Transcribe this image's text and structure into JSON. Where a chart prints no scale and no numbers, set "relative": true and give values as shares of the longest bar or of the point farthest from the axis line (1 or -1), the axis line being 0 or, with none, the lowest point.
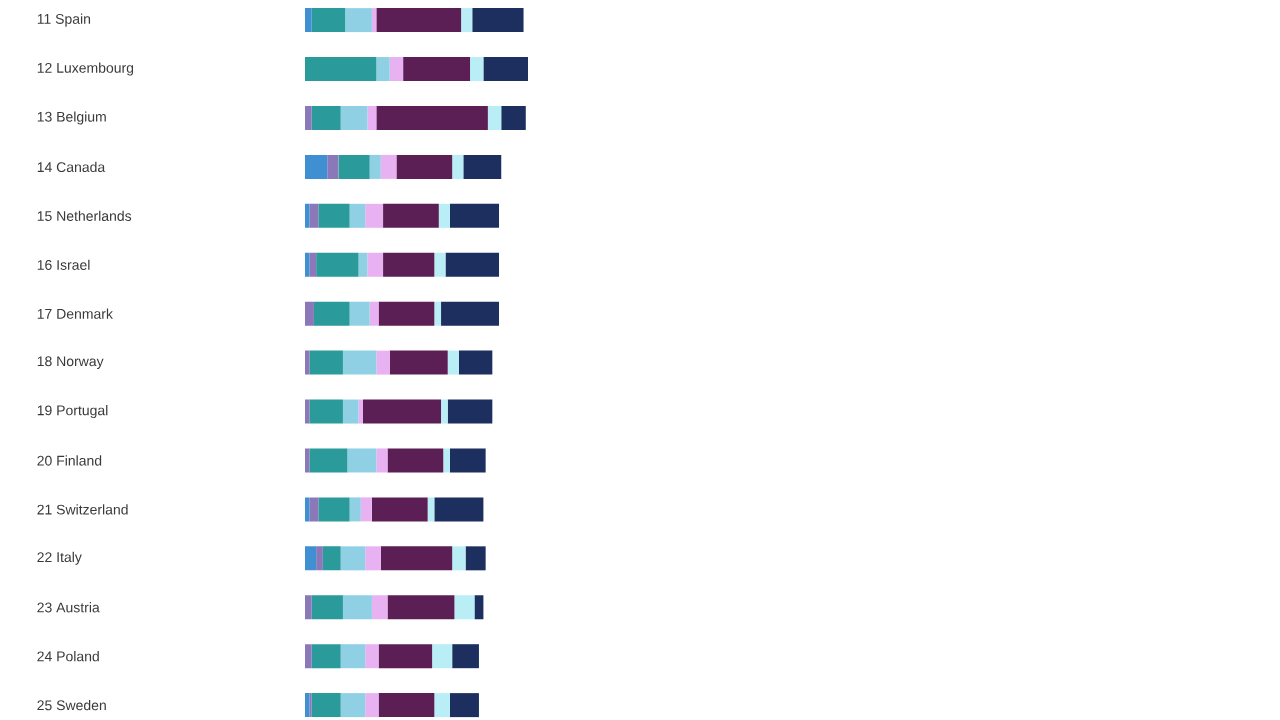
{
  "chart_data": {
    "type": "bar",
    "orientation": "horizontal",
    "stacked": true,
    "relative": true,
    "categories": [
      "11 Spain",
      "12 Luxembourg",
      "13 Belgium",
      "14 Canada",
      "15 Netherlands",
      "16 Israel",
      "17 Denmark",
      "18 Norway",
      "19 Portugal",
      "20 Finland",
      "21 Switzerland",
      "22 Italy",
      "23 Austria",
      "24 Poland",
      "25 Sweden"
    ],
    "series": [
      {
        "color": "#3f8fd2",
        "values": [
          0.03,
          null,
          null,
          0.1,
          0.02,
          0.02,
          null,
          null,
          null,
          null,
          0.02,
          0.05,
          null,
          null,
          0.02
        ]
      },
      {
        "color": "#8a78b8",
        "values": [
          null,
          null,
          0.03,
          0.05,
          0.04,
          0.03,
          0.04,
          0.02,
          0.02,
          0.02,
          0.04,
          0.03,
          0.03,
          0.03,
          0.01
        ]
      },
      {
        "color": "#2a9a9b",
        "values": [
          0.15,
          0.32,
          0.13,
          0.14,
          0.14,
          0.19,
          0.16,
          0.15,
          0.15,
          0.17,
          0.14,
          0.08,
          0.14,
          0.13,
          0.13
        ]
      },
      {
        "color": "#8fd0e4",
        "values": [
          0.12,
          0.06,
          0.12,
          0.05,
          0.07,
          0.04,
          0.09,
          0.15,
          0.07,
          0.13,
          0.05,
          0.11,
          0.13,
          0.11,
          0.11
        ]
      },
      {
        "color": "#e8b2f2",
        "values": [
          0.02,
          0.06,
          0.04,
          0.07,
          0.08,
          0.07,
          0.04,
          0.06,
          0.02,
          0.05,
          0.05,
          0.07,
          0.07,
          0.06,
          0.06
        ]
      },
      {
        "color": "#5b1f55",
        "values": [
          0.38,
          0.3,
          0.5,
          0.25,
          0.25,
          0.23,
          0.25,
          0.26,
          0.35,
          0.25,
          0.25,
          0.32,
          0.3,
          0.24,
          0.25
        ]
      },
      {
        "color": "#b9eef6",
        "values": [
          0.05,
          0.06,
          0.06,
          0.05,
          0.05,
          0.05,
          0.03,
          0.05,
          0.03,
          0.03,
          0.03,
          0.06,
          0.09,
          0.09,
          0.07
        ]
      },
      {
        "color": "#1c2f5e",
        "values": [
          0.23,
          0.2,
          0.11,
          0.17,
          0.22,
          0.24,
          0.26,
          0.15,
          0.2,
          0.16,
          0.22,
          0.09,
          0.04,
          0.12,
          0.13
        ]
      }
    ]
  }
}
